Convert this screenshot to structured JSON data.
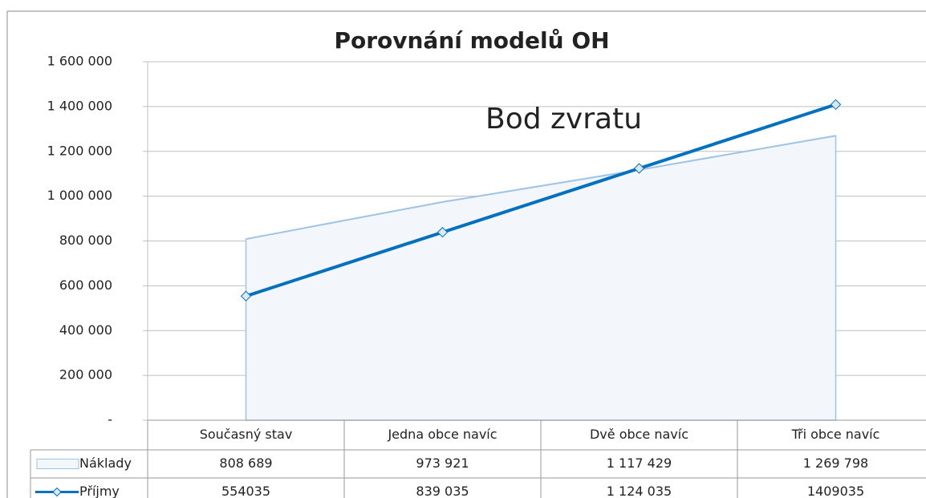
{
  "chart_data": {
    "type": "combo",
    "title": "Porovnání modelů OH",
    "annotation": "Bod zvratu",
    "categories": [
      "Současný stav",
      "Jedna obce navíc",
      "Dvě obce navíc",
      "Tři obce navíc"
    ],
    "series": [
      {
        "name": "Náklady",
        "type": "area",
        "color": "#9dc3e6",
        "fill": "#f3f6fb",
        "values": [
          808689,
          973921,
          1117429,
          1269798
        ],
        "value_labels": [
          "808 689",
          "973 921",
          "1 117 429",
          "1 269 798"
        ]
      },
      {
        "name": "Příjmy",
        "type": "line",
        "color": "#0070c0",
        "values": [
          554035,
          839035,
          1124035,
          1409035
        ],
        "value_labels": [
          "554035",
          "839 035",
          "1 124 035",
          "1409035"
        ]
      }
    ],
    "ylim": [
      0,
      1600000
    ],
    "yticks": [
      {
        "value": 0,
        "label": "-"
      },
      {
        "value": 200000,
        "label": "200 000"
      },
      {
        "value": 400000,
        "label": "400 000"
      },
      {
        "value": 600000,
        "label": "600 000"
      },
      {
        "value": 800000,
        "label": "800 000"
      },
      {
        "value": 1000000,
        "label": "1 000 000"
      },
      {
        "value": 1200000,
        "label": "1 200 000"
      },
      {
        "value": 1400000,
        "label": "1 400 000"
      },
      {
        "value": 1600000,
        "label": "1 600 000"
      }
    ],
    "grid": true
  }
}
